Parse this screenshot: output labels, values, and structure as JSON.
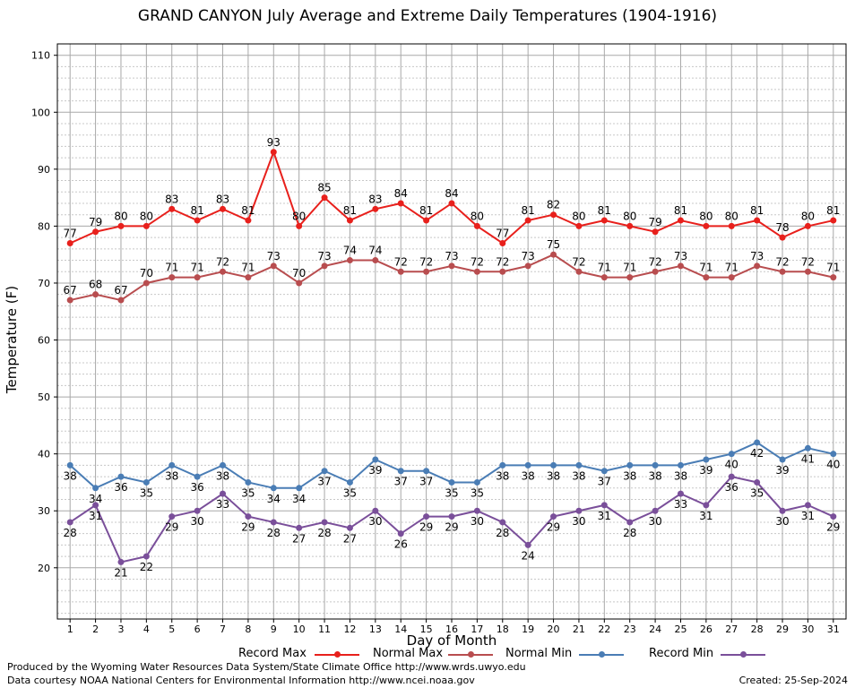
{
  "title": "GRAND CANYON July Average and Extreme Daily Temperatures (1904-1916)",
  "footer": {
    "line1": "Produced by the Wyoming Water Resources Data System/State Climate Office http://www.wrds.uwyo.edu",
    "line2": "Data courtesy NOAA National Centers for Environmental Information http://www.ncei.noaa.gov",
    "created": "Created:  25-Sep-2024"
  },
  "chart_data": {
    "type": "line",
    "xlabel": "Day of Month",
    "ylabel": "Temperature (F)",
    "x": [
      1,
      2,
      3,
      4,
      5,
      6,
      7,
      8,
      9,
      10,
      11,
      12,
      13,
      14,
      15,
      16,
      17,
      18,
      19,
      20,
      21,
      22,
      23,
      24,
      25,
      26,
      27,
      28,
      29,
      30,
      31
    ],
    "xlim": [
      0.5,
      31.5
    ],
    "ylim": [
      11,
      112
    ],
    "yticks": [
      20,
      30,
      40,
      50,
      60,
      70,
      80,
      90,
      100,
      110
    ],
    "grid": true,
    "legend_position": "bottom",
    "series": [
      {
        "name": "Record Max",
        "color": "#e8201c",
        "label_pos": "above",
        "values": [
          77,
          79,
          80,
          80,
          83,
          81,
          83,
          81,
          93,
          80,
          85,
          81,
          83,
          84,
          81,
          84,
          80,
          77,
          81,
          82,
          80,
          81,
          80,
          79,
          81,
          80,
          80,
          81,
          78,
          80,
          81
        ]
      },
      {
        "name": "Normal Max",
        "color": "#b84d4f",
        "label_pos": "above",
        "values": [
          67,
          68,
          67,
          70,
          71,
          71,
          72,
          71,
          73,
          70,
          73,
          74,
          74,
          72,
          72,
          73,
          72,
          72,
          73,
          75,
          72,
          71,
          71,
          72,
          73,
          71,
          71,
          73,
          72,
          72,
          71
        ]
      },
      {
        "name": "Normal Min",
        "color": "#4a7db5",
        "label_pos": "below",
        "values": [
          38,
          34,
          36,
          35,
          38,
          36,
          38,
          35,
          34,
          34,
          37,
          35,
          39,
          37,
          37,
          35,
          35,
          38,
          38,
          38,
          38,
          37,
          38,
          38,
          38,
          39,
          40,
          42,
          39,
          41,
          40
        ]
      },
      {
        "name": "Record Min",
        "color": "#7a4f9a",
        "label_pos": "below",
        "values": [
          28,
          31,
          21,
          22,
          29,
          30,
          33,
          29,
          28,
          27,
          28,
          27,
          30,
          26,
          29,
          29,
          30,
          28,
          24,
          29,
          30,
          31,
          28,
          30,
          33,
          31,
          36,
          35,
          30,
          31,
          29
        ]
      }
    ]
  }
}
